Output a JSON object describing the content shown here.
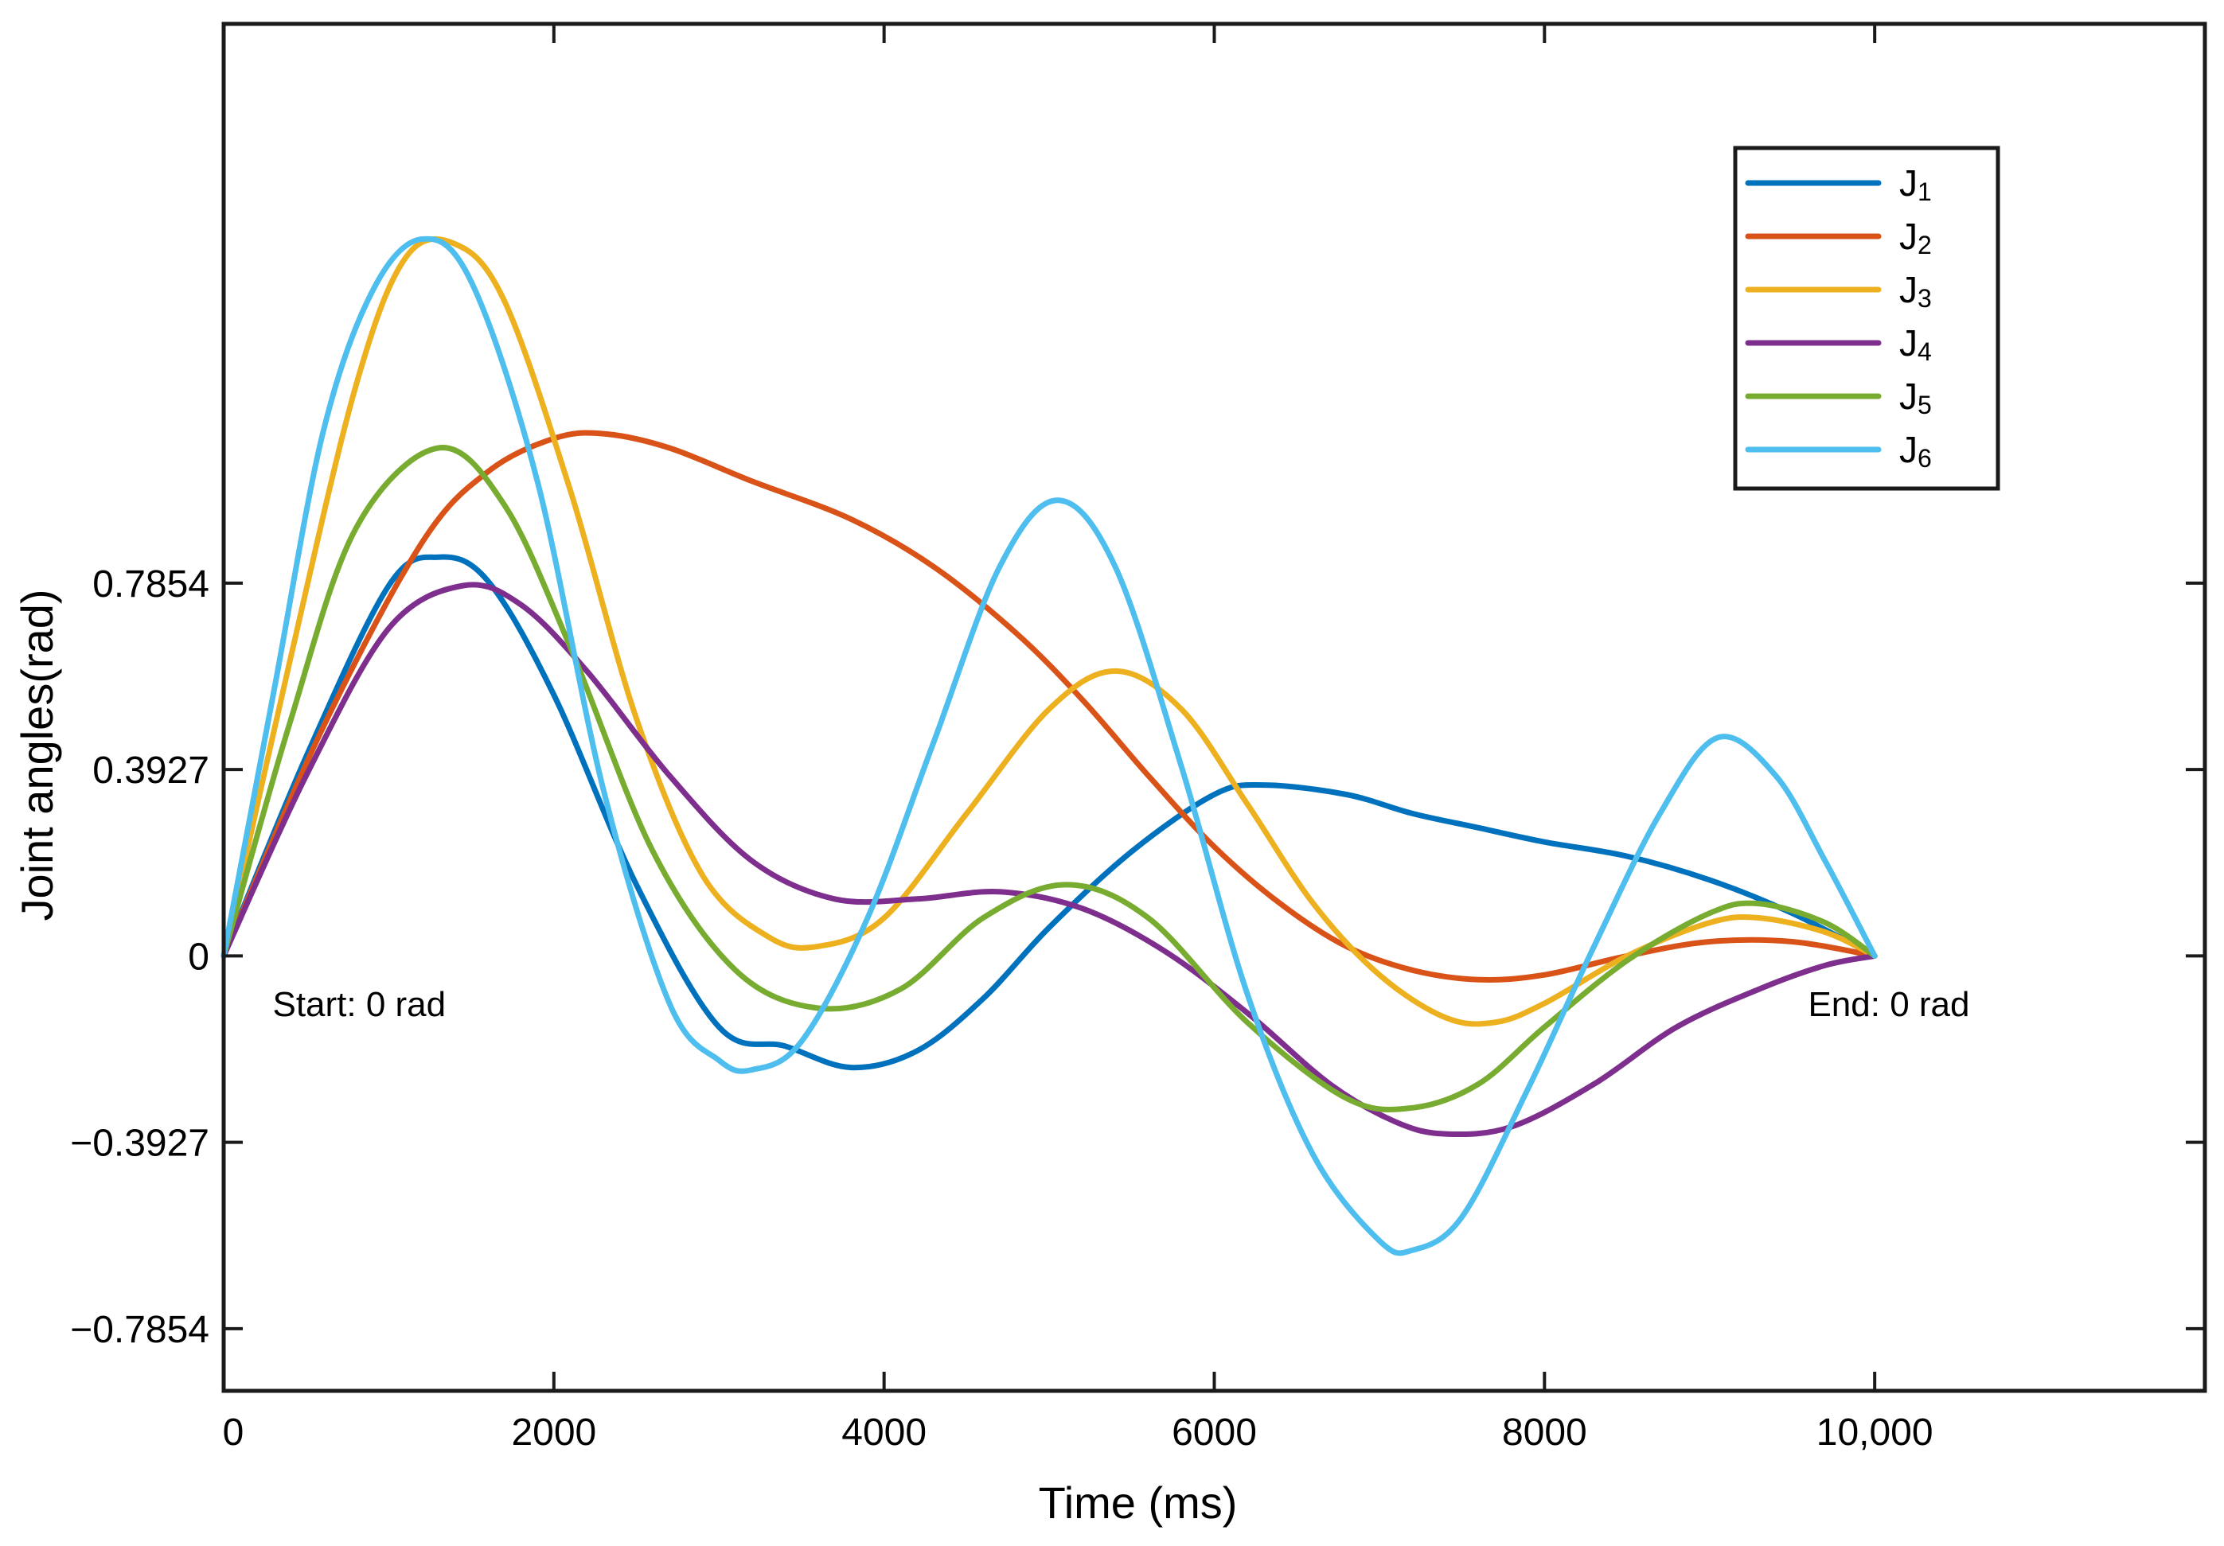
{
  "chart_data": {
    "type": "line",
    "title": "",
    "xlabel": "Time (ms)",
    "ylabel": "Joint angles(rad)",
    "xlim": [
      0,
      12000
    ],
    "ylim": [
      -0.9163,
      1.9635
    ],
    "xticks": [
      0,
      2000,
      4000,
      6000,
      8000,
      10000
    ],
    "xtick_labels": [
      "0",
      "2000",
      "4000",
      "6000",
      "8000",
      "10,000"
    ],
    "yticks": [
      0.7854,
      0.3927,
      0,
      -0.3927,
      -0.7854
    ],
    "ytick_labels": [
      "0.7854",
      "0.3927",
      "0",
      "−0.3927",
      "−0.7854"
    ],
    "grid": false,
    "legend_position": "top-right",
    "annotations": [
      {
        "text": "Start: 0 rad",
        "x": 200,
        "y": -0.12,
        "anchor": "start"
      },
      {
        "text": "End: 0 rad",
        "x": 9500,
        "y": -0.12,
        "anchor": "start"
      }
    ],
    "series": [
      {
        "name": "J1",
        "base": "J",
        "sub": "1",
        "color": "#0072BD",
        "x": [
          0,
          500,
          1000,
          1300,
          1600,
          2000,
          2500,
          3000,
          3400,
          3800,
          4200,
          4600,
          5000,
          5500,
          6000,
          6300,
          6800,
          7200,
          7600,
          8000,
          8500,
          9000,
          9500,
          10000
        ],
        "y": [
          0,
          0.42,
          0.78,
          0.84,
          0.79,
          0.55,
          0.15,
          -0.15,
          -0.19,
          -0.235,
          -0.2,
          -0.09,
          0.06,
          0.22,
          0.34,
          0.36,
          0.34,
          0.3,
          0.27,
          0.24,
          0.21,
          0.16,
          0.09,
          0
        ]
      },
      {
        "name": "J2",
        "base": "J",
        "sub": "2",
        "color": "#D95319",
        "x": [
          0,
          600,
          1200,
          1600,
          2000,
          2300,
          2700,
          3200,
          3800,
          4300,
          4800,
          5200,
          5600,
          6000,
          6400,
          6800,
          7200,
          7600,
          8000,
          8500,
          9000,
          9500,
          10000
        ],
        "y": [
          0,
          0.48,
          0.87,
          1.02,
          1.09,
          1.1,
          1.07,
          1.0,
          0.92,
          0.82,
          0.68,
          0.54,
          0.38,
          0.23,
          0.11,
          0.02,
          -0.03,
          -0.05,
          -0.04,
          0.0,
          0.03,
          0.03,
          0
        ]
      },
      {
        "name": "J3",
        "base": "J",
        "sub": "3",
        "color": "#EDB120",
        "x": [
          0,
          400,
          800,
          1100,
          1400,
          1700,
          2100,
          2500,
          2900,
          3300,
          3600,
          4000,
          4500,
          5000,
          5400,
          5800,
          6200,
          6600,
          7000,
          7400,
          7700,
          8000,
          8500,
          9000,
          9300,
          9700,
          10000
        ],
        "y": [
          0,
          0.62,
          1.2,
          1.47,
          1.5,
          1.38,
          0.98,
          0.5,
          0.17,
          0.04,
          0.02,
          0.08,
          0.3,
          0.52,
          0.6,
          0.52,
          0.32,
          0.11,
          -0.04,
          -0.13,
          -0.14,
          -0.1,
          0.0,
          0.07,
          0.08,
          0.05,
          0
        ]
      },
      {
        "name": "J4",
        "base": "J",
        "sub": "4",
        "color": "#7E2F8E",
        "x": [
          0,
          500,
          1000,
          1450,
          1800,
          2200,
          2700,
          3200,
          3700,
          4200,
          4700,
          5200,
          5700,
          6200,
          6700,
          7100,
          7400,
          7800,
          8300,
          8800,
          9300,
          9700,
          10000
        ],
        "y": [
          0,
          0.38,
          0.69,
          0.78,
          0.74,
          0.6,
          0.38,
          0.2,
          0.12,
          0.12,
          0.135,
          0.1,
          0.01,
          -0.12,
          -0.27,
          -0.35,
          -0.375,
          -0.36,
          -0.27,
          -0.15,
          -0.07,
          -0.02,
          0
        ]
      },
      {
        "name": "J5",
        "base": "J",
        "sub": "5",
        "color": "#77AC30",
        "x": [
          0,
          400,
          800,
          1300,
          1700,
          2100,
          2600,
          3100,
          3600,
          4100,
          4600,
          5100,
          5600,
          6200,
          6800,
          7200,
          7600,
          8000,
          8500,
          9000,
          9300,
          9700,
          10000
        ],
        "y": [
          0,
          0.49,
          0.9,
          1.07,
          0.95,
          0.65,
          0.22,
          -0.03,
          -0.11,
          -0.07,
          0.08,
          0.15,
          0.08,
          -0.14,
          -0.3,
          -0.32,
          -0.27,
          -0.15,
          -0.01,
          0.09,
          0.11,
          0.07,
          0
        ]
      },
      {
        "name": "J6",
        "base": "J",
        "sub": "6",
        "color": "#4DBEEE",
        "x": [
          0,
          300,
          600,
          900,
          1200,
          1500,
          1900,
          2300,
          2700,
          3000,
          3200,
          3500,
          3900,
          4300,
          4700,
          5050,
          5400,
          5800,
          6200,
          6600,
          7000,
          7200,
          7500,
          7900,
          8300,
          8700,
          9050,
          9400,
          9700,
          10000
        ],
        "y": [
          0,
          0.55,
          1.1,
          1.4,
          1.51,
          1.42,
          1.0,
          0.35,
          -0.1,
          -0.22,
          -0.24,
          -0.18,
          0.08,
          0.45,
          0.82,
          0.96,
          0.82,
          0.4,
          -0.08,
          -0.42,
          -0.6,
          -0.62,
          -0.55,
          -0.28,
          0.02,
          0.3,
          0.46,
          0.38,
          0.2,
          0
        ]
      }
    ]
  }
}
